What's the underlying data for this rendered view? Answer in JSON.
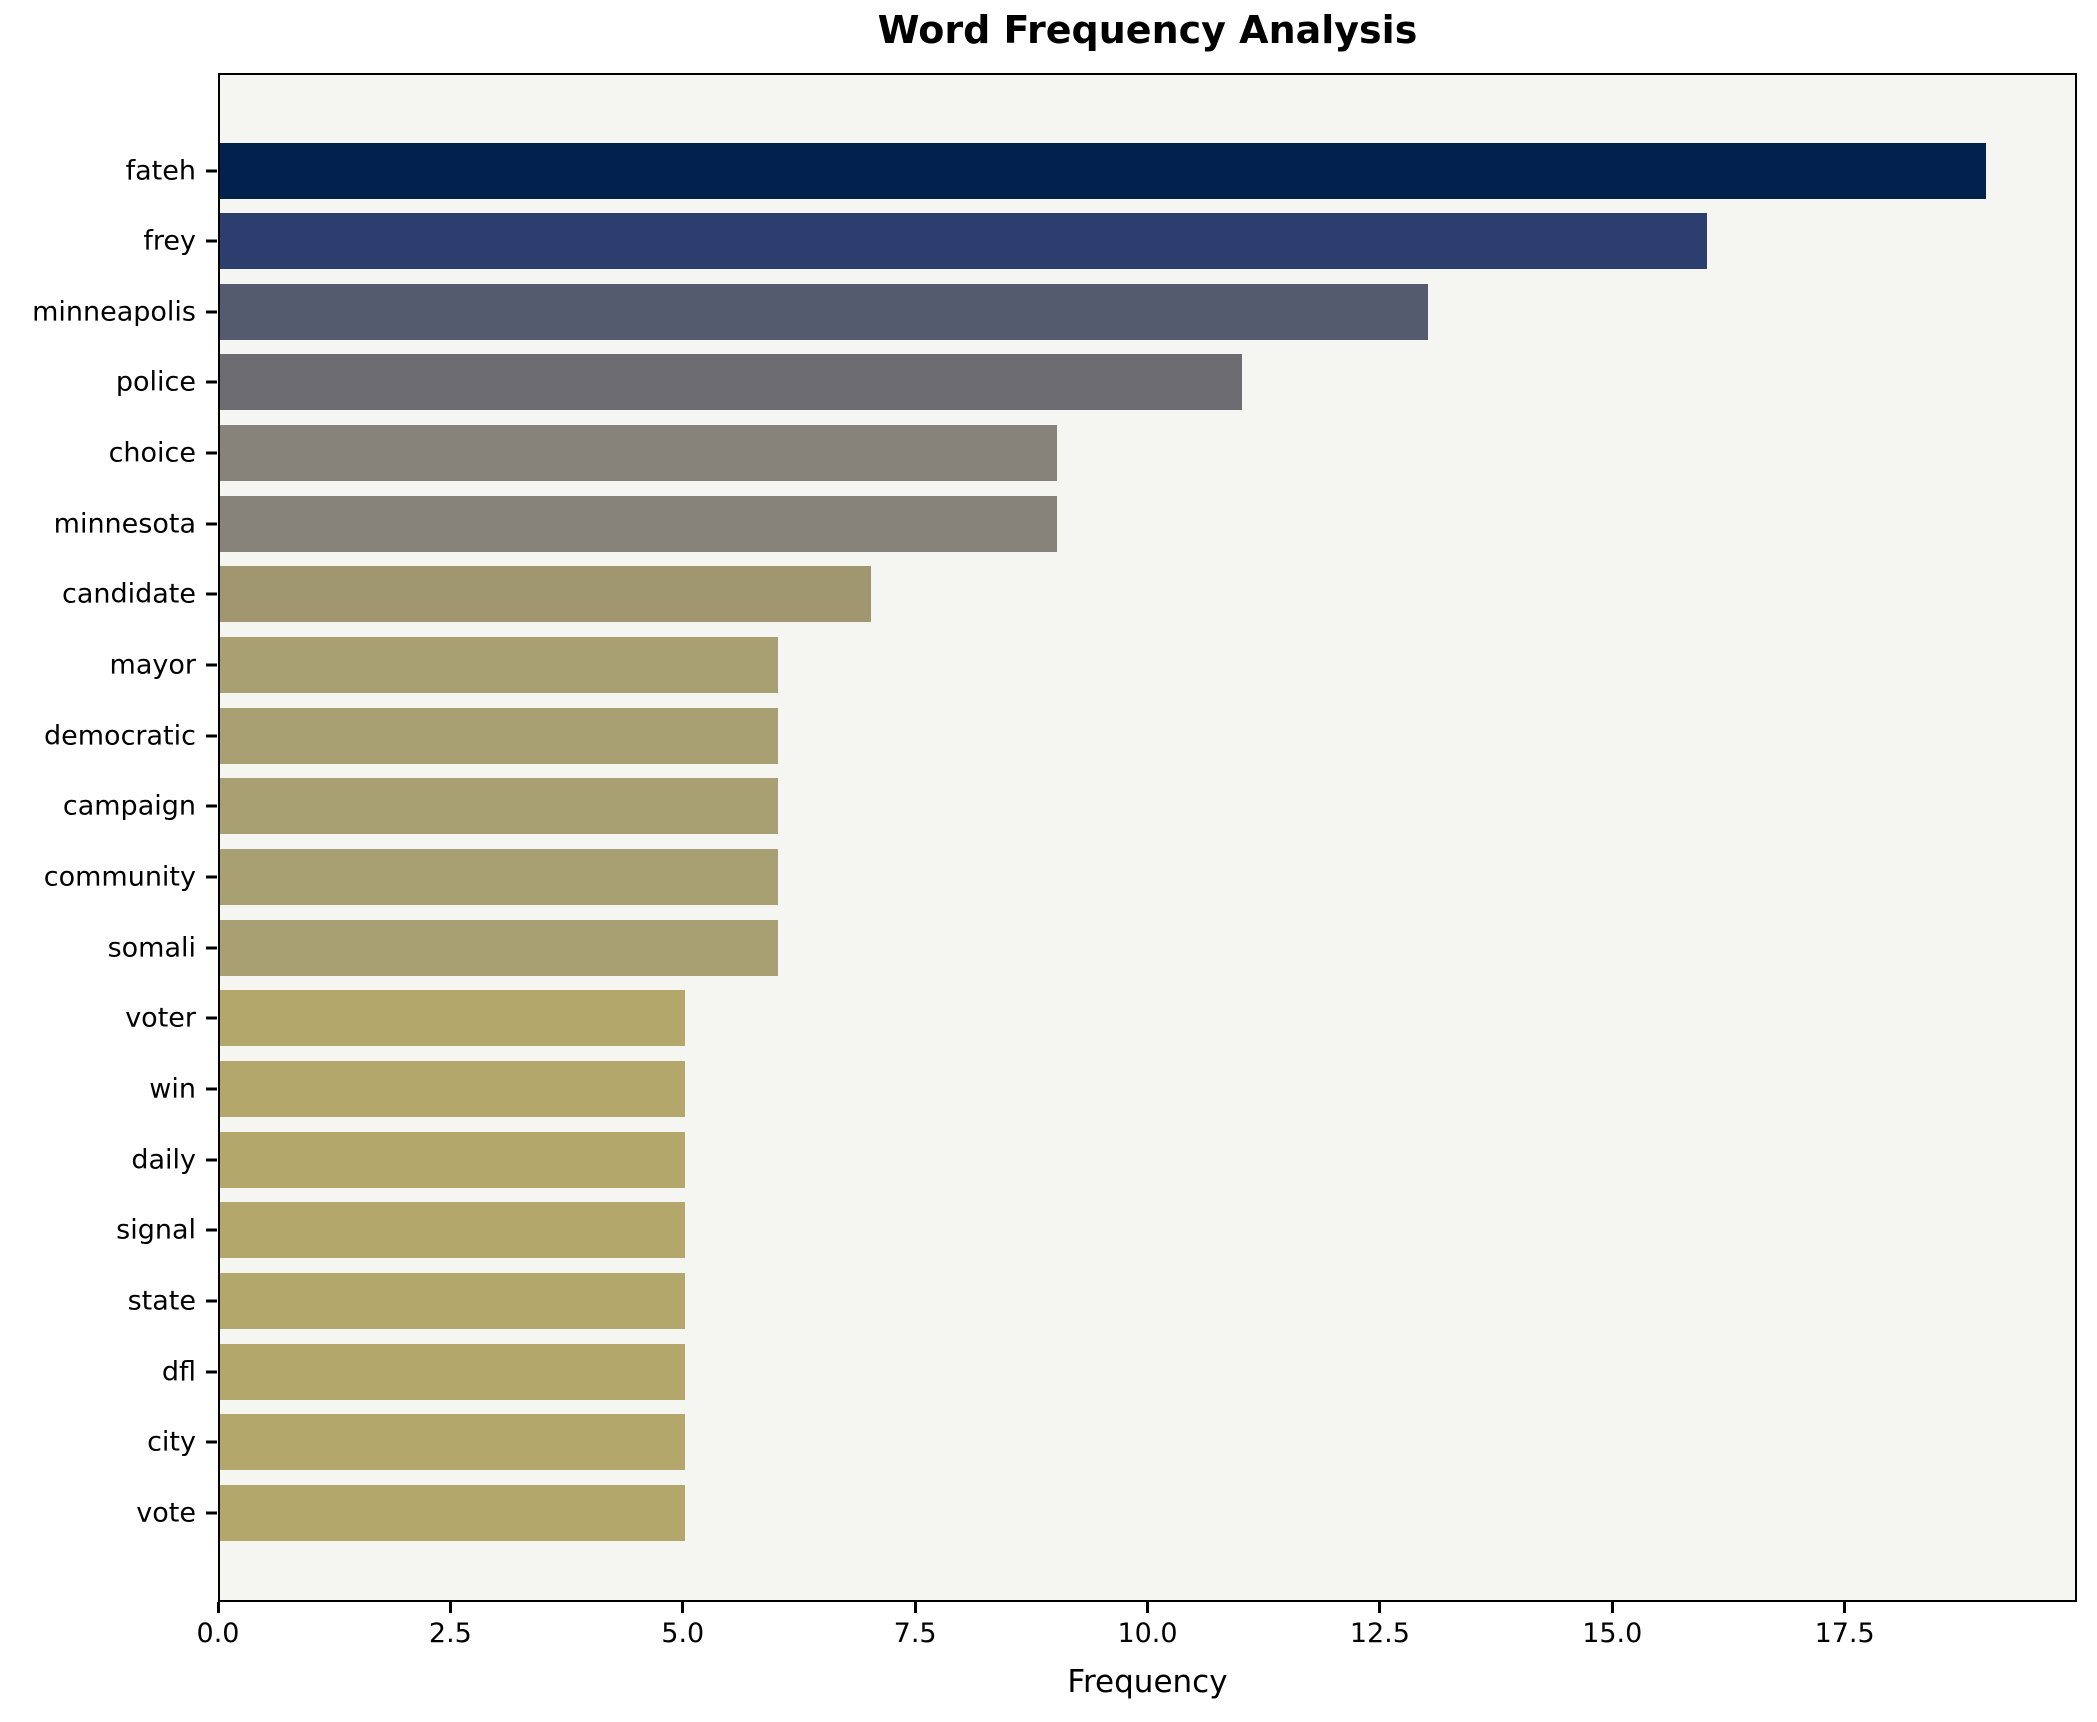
{
  "chart_data": {
    "type": "bar",
    "orientation": "horizontal",
    "title": "Word Frequency Analysis",
    "xlabel": "Frequency",
    "ylabel": "",
    "xlim": [
      0,
      20
    ],
    "grid": false,
    "legend": false,
    "categories": [
      "fateh",
      "frey",
      "minneapolis",
      "police",
      "choice",
      "minnesota",
      "candidate",
      "mayor",
      "democratic",
      "campaign",
      "community",
      "somali",
      "voter",
      "win",
      "daily",
      "signal",
      "state",
      "dfl",
      "city",
      "vote"
    ],
    "values": [
      19,
      16,
      13,
      11,
      9,
      9,
      7,
      6,
      6,
      6,
      6,
      6,
      5,
      5,
      5,
      5,
      5,
      5,
      5,
      5
    ],
    "bar_colors": [
      "#02224d",
      "#2b3e6d",
      "#555b6e",
      "#6c6c71",
      "#87837a",
      "#87837a",
      "#a09770",
      "#a89f73",
      "#a89f73",
      "#a89f73",
      "#a89f73",
      "#a89f73",
      "#b3a76b",
      "#b3a76b",
      "#b3a76b",
      "#b3a76b",
      "#b3a76b",
      "#b3a76b",
      "#b3a76b",
      "#b3a76b"
    ],
    "x_ticks": [
      0,
      2.5,
      5,
      7.5,
      10,
      12.5,
      15,
      17.5
    ],
    "x_tick_labels": [
      "0.0",
      "2.5",
      "5.0",
      "7.5",
      "10.0",
      "12.5",
      "15.0",
      "17.5"
    ]
  },
  "style": {
    "figure_bg": "#ffffff",
    "plot_bg": "#f5f5f2",
    "spine_color": "#000000",
    "text_color": "#000000"
  }
}
